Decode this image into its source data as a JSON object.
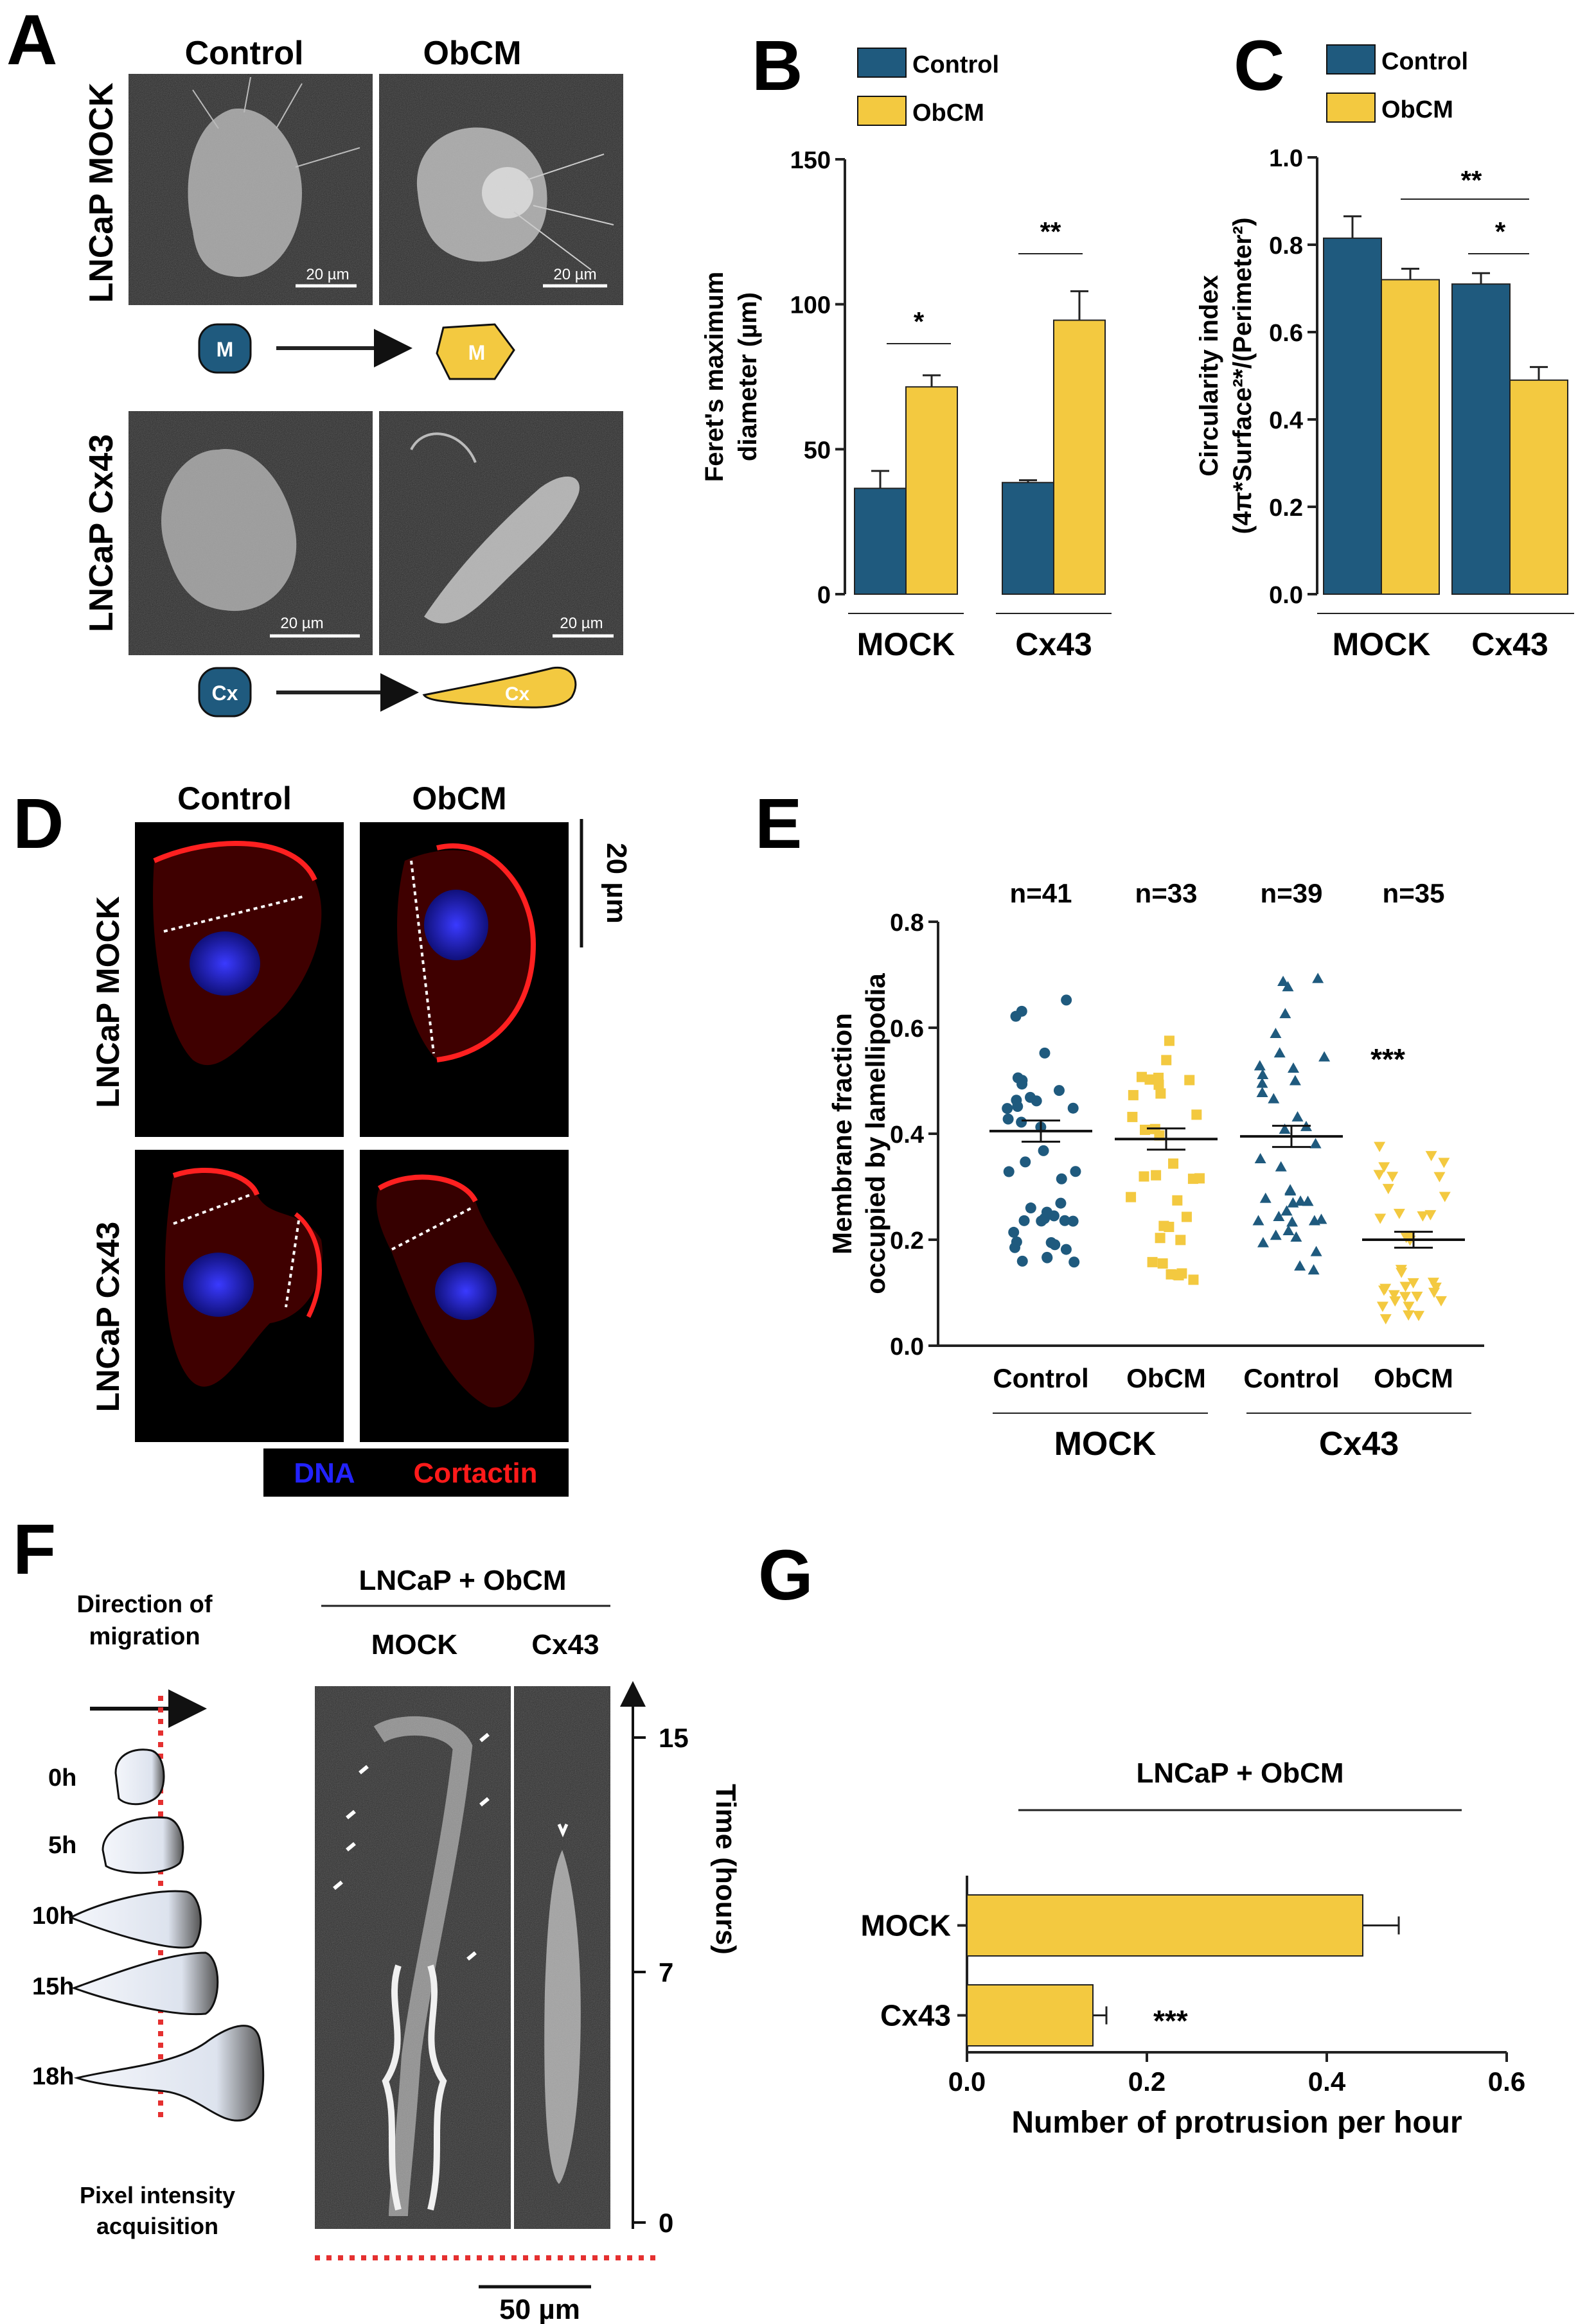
{
  "colors": {
    "mock": "#1f5a7e",
    "obcm": "#f3c940",
    "dna": "#1b1bff",
    "cortactin": "#ff1a1a",
    "axis": "#222222"
  },
  "panels": {
    "A": {
      "letter": "A",
      "col_headers": [
        "Control",
        "ObCM"
      ],
      "row_labels": [
        "LNCaP MOCK",
        "LNCaP Cx43"
      ],
      "scale_label": "20 µm",
      "cell_labels": [
        "M",
        "M",
        "Cx",
        "Cx"
      ]
    },
    "B": {
      "letter": "B",
      "legend": [
        "Control",
        "ObCM"
      ],
      "sig": [
        "*",
        "**"
      ],
      "group_labels": [
        "MOCK",
        "Cx43"
      ]
    },
    "C": {
      "letter": "C",
      "legend": [
        "Control",
        "ObCM"
      ],
      "sig": [
        "**",
        "*"
      ],
      "group_labels": [
        "MOCK",
        "Cx43"
      ]
    },
    "D": {
      "letter": "D",
      "col_headers": [
        "Control",
        "ObCM"
      ],
      "row_labels": [
        "LNCaP MOCK",
        "LNCaP Cx43"
      ],
      "scale_label": "20 µm",
      "legend_dna": "DNA",
      "legend_cortactin": "Cortactin"
    },
    "E": {
      "letter": "E",
      "counts": [
        "n=41",
        "n=33",
        "n=39",
        "n=35"
      ],
      "sig": "***",
      "group_labels": [
        "MOCK",
        "Cx43"
      ]
    },
    "F": {
      "letter": "F",
      "direction_label": [
        "Direction of",
        "migration"
      ],
      "timepoints": [
        "0h",
        "5h",
        "10h",
        "15h",
        "18h"
      ],
      "pixel_label": [
        "Pixel intensity",
        "acquisition"
      ],
      "title": "LNCaP + ObCM",
      "col_labels": [
        "MOCK",
        "Cx43"
      ],
      "time_ticks": [
        "15",
        "7",
        "0"
      ],
      "time_label": "Time (hours)",
      "scale_label": "50 µm"
    },
    "G": {
      "letter": "G",
      "title": "LNCaP + ObCM",
      "sig": "***"
    }
  },
  "chart_data": [
    {
      "type": "bar",
      "panel": "B",
      "categories": [
        "MOCK",
        "Cx43"
      ],
      "series": [
        {
          "name": "Control",
          "values": [
            36.5,
            38.5
          ],
          "errors": [
            6,
            0.8
          ]
        },
        {
          "name": "ObCM",
          "values": [
            71.5,
            94.5
          ],
          "errors": [
            4,
            10
          ]
        }
      ],
      "ylabel": [
        "Feret's maximum",
        "diameter (µm)"
      ],
      "ylim": [
        0,
        150
      ],
      "yticks": [
        "0",
        "50",
        "100",
        "150"
      ]
    },
    {
      "type": "bar",
      "panel": "C",
      "categories": [
        "MOCK",
        "Cx43"
      ],
      "series": [
        {
          "name": "Control",
          "values": [
            0.815,
            0.71
          ],
          "errors": [
            0.05,
            0.025
          ]
        },
        {
          "name": "ObCM",
          "values": [
            0.72,
            0.49
          ],
          "errors": [
            0.025,
            0.03
          ]
        }
      ],
      "ylabel": [
        "Circularity index",
        "(4π*Surface²*/(Perimeter²)"
      ],
      "ylim": [
        0,
        1.0
      ],
      "yticks": [
        "0.0",
        "0.2",
        "0.4",
        "0.6",
        "0.8",
        "1.0"
      ]
    },
    {
      "type": "scatter",
      "panel": "E",
      "categories": [
        "Control",
        "ObCM",
        "Control",
        "ObCM"
      ],
      "means": [
        0.405,
        0.39,
        0.395,
        0.2
      ],
      "sems": [
        0.02,
        0.02,
        0.02,
        0.015
      ],
      "ranges": [
        [
          0.15,
          0.68
        ],
        [
          0.12,
          0.6
        ],
        [
          0.14,
          0.71
        ],
        [
          0.04,
          0.4
        ]
      ],
      "ylabel": [
        "Membrane fraction",
        "occupied by lamellipodia"
      ],
      "ylim": [
        0,
        0.8
      ],
      "yticks": [
        "0.0",
        "0.2",
        "0.4",
        "0.6",
        "0.8"
      ]
    },
    {
      "type": "bar",
      "panel": "G",
      "orientation": "horizontal",
      "categories": [
        "MOCK",
        "Cx43"
      ],
      "values": [
        0.44,
        0.14
      ],
      "errors": [
        0.04,
        0.015
      ],
      "xlabel": "Number of protrusion per hour",
      "xlim": [
        0,
        0.6
      ],
      "xticks": [
        "0.0",
        "0.2",
        "0.4",
        "0.6"
      ]
    }
  ]
}
